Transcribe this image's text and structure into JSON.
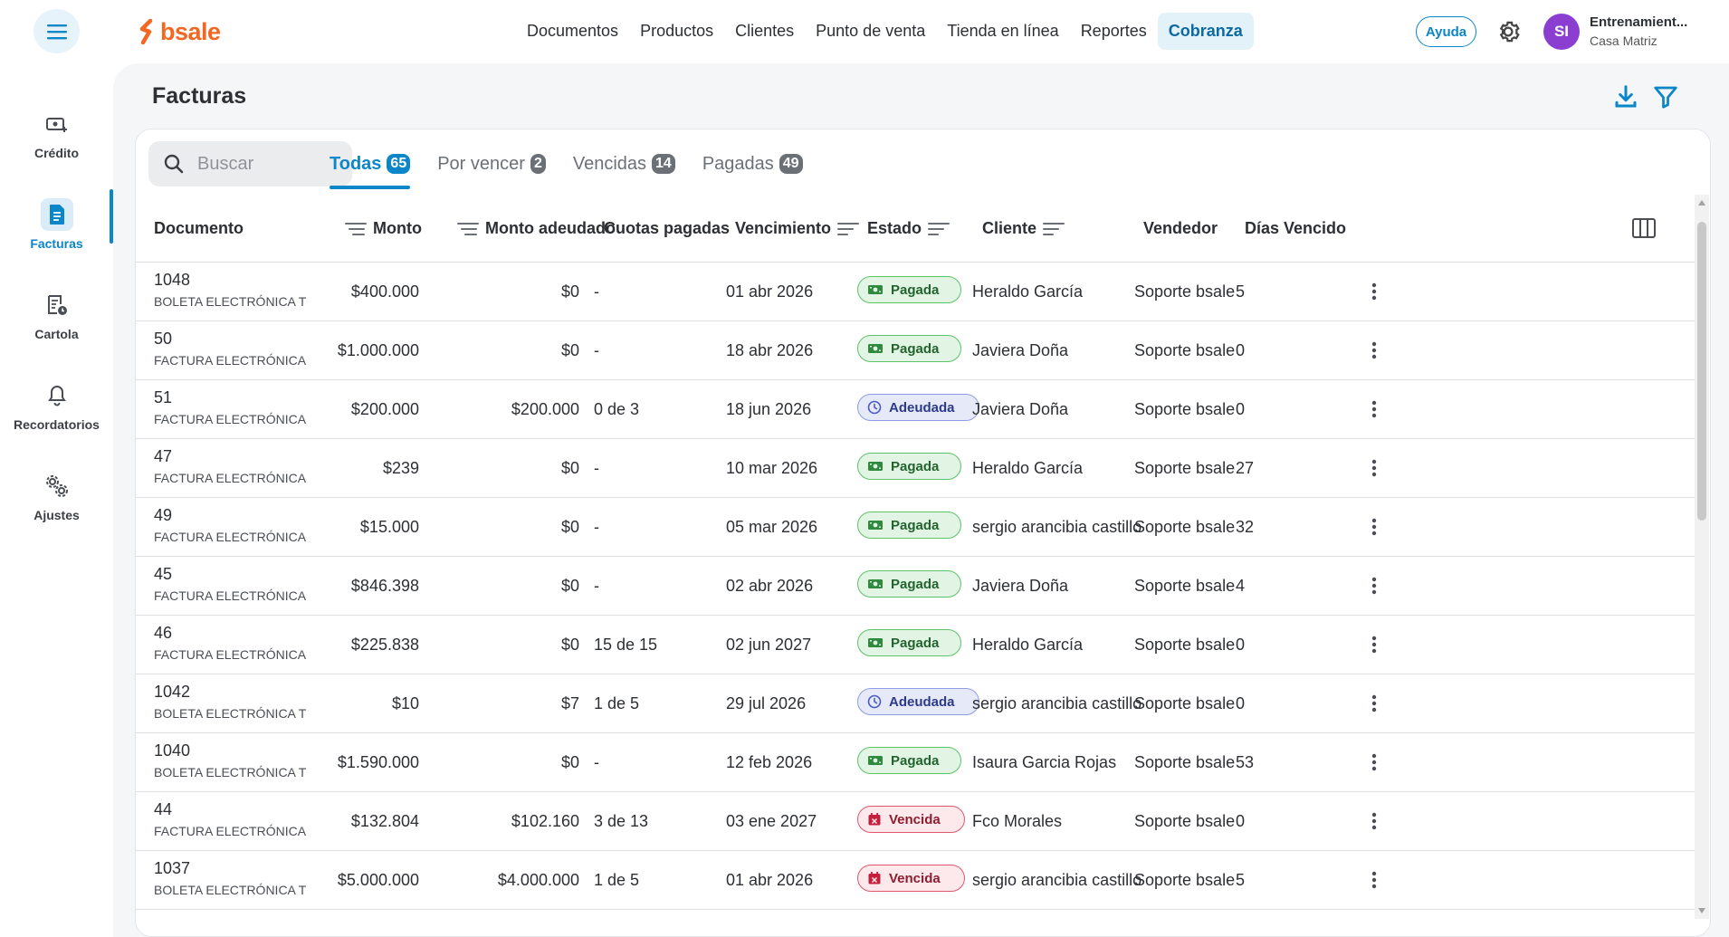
{
  "brand": {
    "logo_text": "bsale",
    "accent": "#0b86c8",
    "logo_color": "#f26722"
  },
  "topnav": [
    {
      "label": "Documentos",
      "active": false
    },
    {
      "label": "Productos",
      "active": false
    },
    {
      "label": "Clientes",
      "active": false
    },
    {
      "label": "Punto de venta",
      "active": false
    },
    {
      "label": "Tienda en línea",
      "active": false
    },
    {
      "label": "Reportes",
      "active": false
    },
    {
      "label": "Cobranza",
      "active": true
    }
  ],
  "header": {
    "help_label": "Ayuda",
    "user_initials": "SI",
    "user_name": "Entrenamient...",
    "user_branch": "Casa Matriz"
  },
  "sidebar": {
    "items": [
      {
        "label": "Crédito",
        "icon": "credit-card-plus-icon",
        "active": false
      },
      {
        "label": "Facturas",
        "icon": "document-icon",
        "active": true
      },
      {
        "label": "Cartola",
        "icon": "statement-clock-icon",
        "active": false
      },
      {
        "label": "Recordatorios",
        "icon": "bell-icon",
        "active": false
      },
      {
        "label": "Ajustes",
        "icon": "gears-icon",
        "active": false
      }
    ]
  },
  "page": {
    "title": "Facturas"
  },
  "search": {
    "placeholder": "Buscar",
    "value": ""
  },
  "tabs": [
    {
      "label": "Todas",
      "count": "65",
      "active": true
    },
    {
      "label": "Por vencer",
      "count": "2",
      "active": false
    },
    {
      "label": "Vencidas",
      "count": "14",
      "active": false
    },
    {
      "label": "Pagadas",
      "count": "49",
      "active": false
    }
  ],
  "columns": {
    "documento": "Documento",
    "monto": "Monto",
    "monto_adeudado": "Monto adeudado",
    "cuotas": "Cuotas pagadas",
    "vencimiento": "Vencimiento",
    "estado": "Estado",
    "cliente": "Cliente",
    "vendedor": "Vendedor",
    "dias": "Días Vencido"
  },
  "rows": [
    {
      "num": "1048",
      "type": "BOLETA ELECTRÓNICA T",
      "monto": "$400.000",
      "adeudado": "$0",
      "cuotas": "-",
      "venc": "01 abr 2026",
      "estado": "Pagada",
      "estado_kind": "pagada",
      "cliente": "Heraldo García",
      "vendedor": "Soporte bsale",
      "dias": "5"
    },
    {
      "num": "50",
      "type": "FACTURA ELECTRÓNICA",
      "monto": "$1.000.000",
      "adeudado": "$0",
      "cuotas": "-",
      "venc": "18 abr 2026",
      "estado": "Pagada",
      "estado_kind": "pagada",
      "cliente": "Javiera Doña",
      "vendedor": "Soporte bsale",
      "dias": "0"
    },
    {
      "num": "51",
      "type": "FACTURA ELECTRÓNICA",
      "monto": "$200.000",
      "adeudado": "$200.000",
      "cuotas": "0 de 3",
      "venc": "18 jun 2026",
      "estado": "Adeudada",
      "estado_kind": "adeudada",
      "cliente": "Javiera Doña",
      "vendedor": "Soporte bsale",
      "dias": "0"
    },
    {
      "num": "47",
      "type": "FACTURA ELECTRÓNICA",
      "monto": "$239",
      "adeudado": "$0",
      "cuotas": "-",
      "venc": "10 mar 2026",
      "estado": "Pagada",
      "estado_kind": "pagada",
      "cliente": "Heraldo García",
      "vendedor": "Soporte bsale",
      "dias": "27"
    },
    {
      "num": "49",
      "type": "FACTURA ELECTRÓNICA",
      "monto": "$15.000",
      "adeudado": "$0",
      "cuotas": "-",
      "venc": "05 mar 2026",
      "estado": "Pagada",
      "estado_kind": "pagada",
      "cliente": "sergio arancibia castillo",
      "vendedor": "Soporte bsale",
      "dias": "32"
    },
    {
      "num": "45",
      "type": "FACTURA ELECTRÓNICA",
      "monto": "$846.398",
      "adeudado": "$0",
      "cuotas": "-",
      "venc": "02 abr 2026",
      "estado": "Pagada",
      "estado_kind": "pagada",
      "cliente": "Javiera Doña",
      "vendedor": "Soporte bsale",
      "dias": "4"
    },
    {
      "num": "46",
      "type": "FACTURA ELECTRÓNICA",
      "monto": "$225.838",
      "adeudado": "$0",
      "cuotas": "15 de 15",
      "venc": "02 jun 2027",
      "estado": "Pagada",
      "estado_kind": "pagada",
      "cliente": "Heraldo García",
      "vendedor": "Soporte bsale",
      "dias": "0"
    },
    {
      "num": "1042",
      "type": "BOLETA ELECTRÓNICA T",
      "monto": "$10",
      "adeudado": "$7",
      "cuotas": "1 de 5",
      "venc": "29 jul 2026",
      "estado": "Adeudada",
      "estado_kind": "adeudada",
      "cliente": "sergio arancibia castillo",
      "vendedor": "Soporte bsale",
      "dias": "0"
    },
    {
      "num": "1040",
      "type": "BOLETA ELECTRÓNICA T",
      "monto": "$1.590.000",
      "adeudado": "$0",
      "cuotas": "-",
      "venc": "12 feb 2026",
      "estado": "Pagada",
      "estado_kind": "pagada",
      "cliente": "Isaura Garcia Rojas",
      "vendedor": "Soporte bsale",
      "dias": "53"
    },
    {
      "num": "44",
      "type": "FACTURA ELECTRÓNICA",
      "monto": "$132.804",
      "adeudado": "$102.160",
      "cuotas": "3 de 13",
      "venc": "03 ene 2027",
      "estado": "Vencida",
      "estado_kind": "vencida",
      "cliente": "Fco Morales",
      "vendedor": "Soporte bsale",
      "dias": "0"
    },
    {
      "num": "1037",
      "type": "BOLETA ELECTRÓNICA T",
      "monto": "$5.000.000",
      "adeudado": "$4.000.000",
      "cuotas": "1 de 5",
      "venc": "01 abr 2026",
      "estado": "Vencida",
      "estado_kind": "vencida",
      "cliente": "sergio arancibia castillo",
      "vendedor": "Soporte bsale",
      "dias": "5"
    }
  ]
}
